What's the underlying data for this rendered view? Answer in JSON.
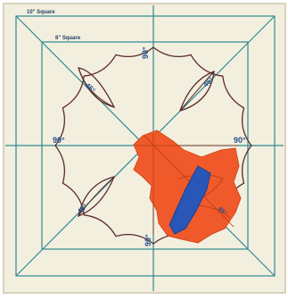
{
  "template": {
    "outer_square_label": "10\" Square",
    "inner_square_label": "8\" Square",
    "angle_top": "90°",
    "angle_left": "90°",
    "angle_right": "90°",
    "angle_bottom": "90°",
    "angle_upper_left": "45°",
    "angle_upper_right": "45°",
    "angle_lower_left": "45°",
    "angle_lower_right": "45°"
  },
  "colors": {
    "board": "#f3efdf",
    "guide_line": "#2f8a92",
    "outline": "#5b2a2a",
    "fabric_orange": "#f05a2a",
    "fabric_blue": "#2a56b8"
  }
}
